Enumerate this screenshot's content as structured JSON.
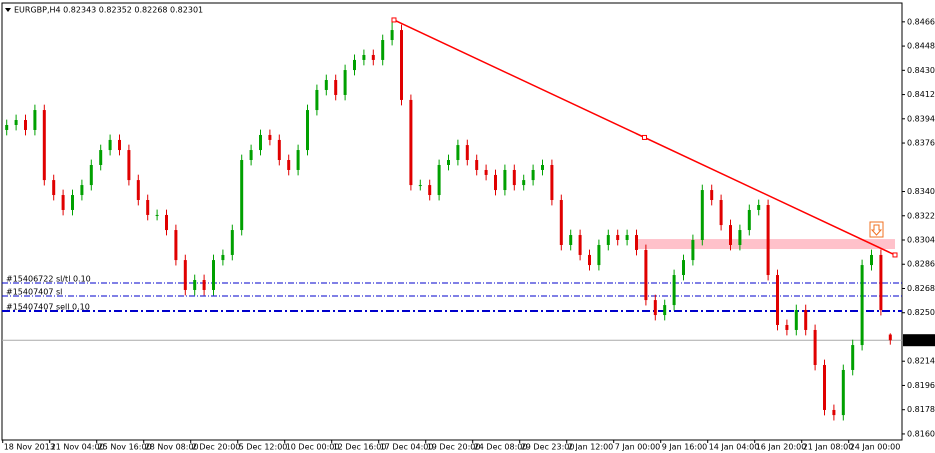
{
  "chart_data": {
    "type": "candlestick",
    "title": "EURGBP,H4  0.82343 0.82352 0.82268 0.82301",
    "categories": [
      "18 Nov 2013",
      null,
      null,
      null,
      null,
      "21 Nov 04:00",
      null,
      null,
      null,
      null,
      "25 Nov 16:00",
      null,
      null,
      null,
      null,
      "28 Nov 08:00",
      null,
      null,
      null,
      null,
      "2 Dec 20:00",
      null,
      null,
      null,
      null,
      "5 Dec 12:00",
      null,
      null,
      null,
      null,
      "10 Dec 00:00",
      null,
      null,
      null,
      null,
      "12 Dec 16:00",
      null,
      null,
      null,
      null,
      "17 Dec 04:00",
      null,
      null,
      null,
      null,
      "19 Dec 20:00",
      null,
      null,
      null,
      null,
      "24 Dec 08:00",
      null,
      null,
      null,
      null,
      "29 Dec 23:00",
      null,
      null,
      null,
      null,
      "2 Jan 12:00",
      null,
      null,
      null,
      null,
      "7 Jan 00:00",
      null,
      null,
      null,
      null,
      "9 Jan 16:00",
      null,
      null,
      null,
      null,
      "14 Jan 04:00",
      null,
      null,
      null,
      null,
      "16 Jan 20:00",
      null,
      null,
      null,
      null,
      "21 Jan 08:00",
      null,
      null,
      null,
      null,
      "24 Jan 00:00",
      null,
      null,
      null,
      null
    ],
    "open": [
      0.83862,
      0.83899,
      0.83936,
      0.83862,
      0.8401,
      0.8349,
      0.83379,
      0.83268,
      0.83379,
      0.83453,
      0.83602,
      0.83713,
      0.83788,
      0.83713,
      0.8349,
      0.83342,
      0.83231,
      0.83231,
      0.83119,
      0.82896,
      0.82674,
      0.82748,
      0.82674,
      0.82896,
      0.82934,
      0.83119,
      0.83639,
      0.83713,
      0.83825,
      0.83788,
      0.83639,
      0.83565,
      0.83713,
      0.8401,
      0.84159,
      0.84233,
      0.84122,
      0.84307,
      0.84382,
      0.84419,
      0.84382,
      0.8453,
      0.84604,
      0.84085,
      0.83453,
      0.83453,
      0.83379,
      0.83602,
      0.83639,
      0.8375,
      0.83639,
      0.83565,
      0.83528,
      0.83416,
      0.83565,
      0.83453,
      0.8349,
      0.83565,
      0.83602,
      0.83342,
      0.83008,
      0.83082,
      0.82934,
      0.82859,
      0.83008,
      0.83082,
      0.83045,
      0.83082,
      0.82971,
      0.82599,
      0.82488,
      0.82562,
      0.82785,
      0.82896,
      0.83045,
      0.83416,
      0.83342,
      0.83156,
      0.83008,
      0.83119,
      0.83268,
      0.83305,
      0.82785,
      0.82414,
      0.82377,
      0.82525,
      0.82377,
      0.82117,
      0.81783,
      0.81745,
      0.8208,
      0.82265,
      0.82859,
      0.82934,
      0.82343
    ],
    "high": [
      0.83939,
      0.83976,
      0.83976,
      0.8405,
      0.8405,
      0.8353,
      0.83419,
      0.83419,
      0.83493,
      0.83642,
      0.83753,
      0.83828,
      0.83828,
      0.83753,
      0.8353,
      0.83382,
      0.83271,
      0.83271,
      0.83159,
      0.82936,
      0.82788,
      0.82788,
      0.82936,
      0.82974,
      0.83159,
      0.83679,
      0.83753,
      0.83865,
      0.83865,
      0.83828,
      0.83679,
      0.83753,
      0.8405,
      0.84199,
      0.84273,
      0.84273,
      0.84347,
      0.84422,
      0.84459,
      0.84459,
      0.8457,
      0.84679,
      0.84644,
      0.84125,
      0.83493,
      0.83493,
      0.83642,
      0.83679,
      0.8379,
      0.8379,
      0.83679,
      0.83605,
      0.83568,
      0.83605,
      0.83605,
      0.8353,
      0.83605,
      0.83642,
      0.83642,
      0.83382,
      0.83122,
      0.83122,
      0.82974,
      0.83048,
      0.83122,
      0.83122,
      0.83122,
      0.83122,
      0.83011,
      0.82639,
      0.82602,
      0.82825,
      0.82936,
      0.83085,
      0.83456,
      0.83456,
      0.83382,
      0.83196,
      0.83159,
      0.83308,
      0.83345,
      0.83345,
      0.82825,
      0.82454,
      0.82565,
      0.82565,
      0.82417,
      0.82157,
      0.81823,
      0.8212,
      0.82305,
      0.82899,
      0.82974,
      0.82974,
      0.82352
    ],
    "low": [
      0.83822,
      0.83859,
      0.83822,
      0.83822,
      0.8345,
      0.83339,
      0.83228,
      0.83228,
      0.83339,
      0.83413,
      0.83562,
      0.83673,
      0.83673,
      0.8345,
      0.83302,
      0.83191,
      0.83191,
      0.83079,
      0.82856,
      0.82634,
      0.82634,
      0.82634,
      0.82634,
      0.82856,
      0.82894,
      0.83079,
      0.83599,
      0.83673,
      0.83748,
      0.83599,
      0.83525,
      0.83525,
      0.83673,
      0.8397,
      0.84119,
      0.84082,
      0.84082,
      0.84267,
      0.84342,
      0.84342,
      0.84342,
      0.8449,
      0.84045,
      0.83413,
      0.83413,
      0.83339,
      0.83339,
      0.83562,
      0.83599,
      0.83599,
      0.83525,
      0.83488,
      0.83376,
      0.83376,
      0.83413,
      0.83413,
      0.8345,
      0.83525,
      0.83302,
      0.82968,
      0.82968,
      0.82894,
      0.82819,
      0.82819,
      0.82968,
      0.83005,
      0.83005,
      0.82931,
      0.82559,
      0.82448,
      0.82448,
      0.82522,
      0.82745,
      0.82856,
      0.83005,
      0.83302,
      0.83116,
      0.82968,
      0.82968,
      0.83079,
      0.83228,
      0.82745,
      0.82374,
      0.82337,
      0.82337,
      0.82337,
      0.82077,
      0.81743,
      0.81705,
      0.81705,
      0.8204,
      0.82225,
      0.82819,
      0.82485,
      0.82268
    ],
    "close": [
      0.83899,
      0.83936,
      0.83862,
      0.8401,
      0.8349,
      0.83379,
      0.83268,
      0.83379,
      0.83453,
      0.83602,
      0.83713,
      0.83788,
      0.83713,
      0.8349,
      0.83342,
      0.83231,
      0.83231,
      0.83119,
      0.82896,
      0.82674,
      0.82748,
      0.82674,
      0.82896,
      0.82934,
      0.83119,
      0.83639,
      0.83713,
      0.83825,
      0.83788,
      0.83639,
      0.83565,
      0.83713,
      0.8401,
      0.84159,
      0.84233,
      0.84122,
      0.84307,
      0.84382,
      0.84419,
      0.84382,
      0.8453,
      0.84604,
      0.84085,
      0.83453,
      0.83453,
      0.83379,
      0.83602,
      0.83639,
      0.8375,
      0.83639,
      0.83565,
      0.83528,
      0.83416,
      0.83565,
      0.83453,
      0.8349,
      0.83565,
      0.83602,
      0.83342,
      0.83008,
      0.83082,
      0.82934,
      0.82859,
      0.83008,
      0.83082,
      0.83045,
      0.83082,
      0.82971,
      0.82599,
      0.82488,
      0.82562,
      0.82785,
      0.82896,
      0.83045,
      0.83416,
      0.83342,
      0.83156,
      0.83008,
      0.83119,
      0.83268,
      0.83305,
      0.82785,
      0.82414,
      0.82377,
      0.82525,
      0.82377,
      0.82117,
      0.81783,
      0.81745,
      0.8208,
      0.82265,
      0.82859,
      0.82934,
      0.82525,
      0.82301
    ],
    "up_color": "#00a000",
    "down_color": "#e00000",
    "ylim": [
      0.8156,
      0.8479
    ],
    "yticks": [
      0.84665,
      0.84485,
      0.84305,
      0.84125,
      0.83945,
      0.83765,
      0.83405,
      0.83225,
      0.83045,
      0.82865,
      0.82685,
      0.82505,
      0.82145,
      0.81965,
      0.81785,
      0.81605
    ],
    "levels": [
      {
        "label": "#15406722 sl/tl 0.10",
        "value": 0.82726
      },
      {
        "label": "#15407407 sl",
        "value": 0.82629
      },
      {
        "label": "#15407407 sell 0.10",
        "value": 0.82518
      }
    ],
    "level_color": "#0000cc",
    "trendline": {
      "x": [
        41.2,
        94.5
      ],
      "y": [
        0.84679,
        0.82934
      ],
      "color": "#ff0000"
    },
    "zone": {
      "x": [
        67.05,
        94.5
      ],
      "y": [
        0.83052,
        0.82978
      ],
      "color": "#ffb6c1"
    },
    "grid": false
  }
}
